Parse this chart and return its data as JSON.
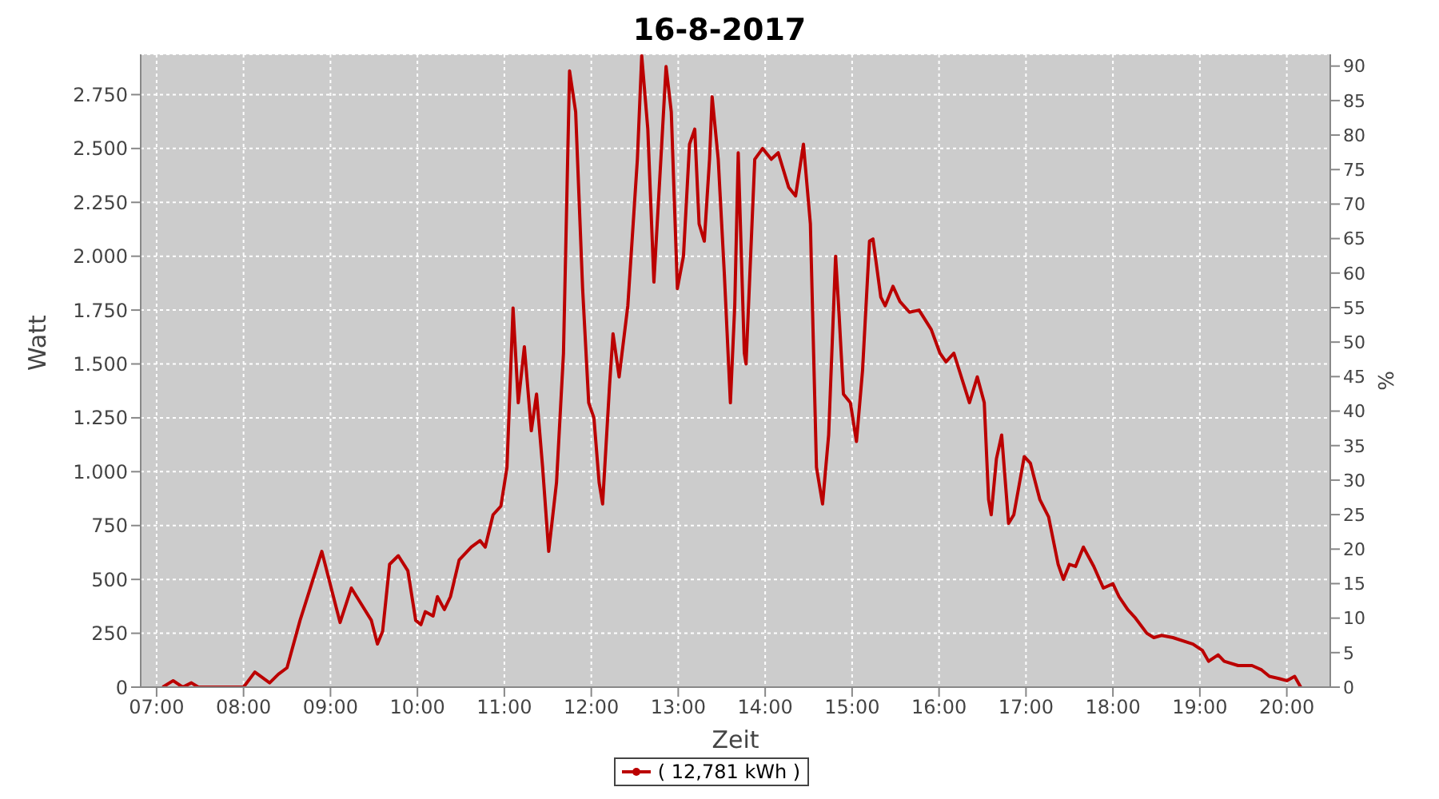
{
  "chart_data": {
    "type": "line",
    "title": "16-8-2017",
    "xlabel": "Zeit",
    "ylabel": "Watt",
    "y2label": "%",
    "xlim": [
      6.817,
      20.5
    ],
    "xticks": [
      {
        "value": 7,
        "label": "07:00"
      },
      {
        "value": 8,
        "label": "08:00"
      },
      {
        "value": 9,
        "label": "09:00"
      },
      {
        "value": 10,
        "label": "10:00"
      },
      {
        "value": 11,
        "label": "11:00"
      },
      {
        "value": 12,
        "label": "12:00"
      },
      {
        "value": 13,
        "label": "13:00"
      },
      {
        "value": 14,
        "label": "14:00"
      },
      {
        "value": 15,
        "label": "15:00"
      },
      {
        "value": 16,
        "label": "16:00"
      },
      {
        "value": 17,
        "label": "17:00"
      },
      {
        "value": 18,
        "label": "18:00"
      },
      {
        "value": 19,
        "label": "19:00"
      },
      {
        "value": 20,
        "label": "20:00"
      }
    ],
    "ylim": [
      0,
      2937
    ],
    "yticks": [
      0,
      250,
      500,
      750,
      {
        "value": 1000,
        "label": "1.000"
      },
      {
        "value": 1250,
        "label": "1.250"
      },
      {
        "value": 1500,
        "label": "1.500"
      },
      {
        "value": 1750,
        "label": "1.750"
      },
      {
        "value": 2000,
        "label": "2.000"
      },
      {
        "value": 2250,
        "label": "2.250"
      },
      {
        "value": 2500,
        "label": "2.500"
      },
      {
        "value": 2750,
        "label": "2.750"
      }
    ],
    "y2lim": [
      0,
      91.7
    ],
    "y2ticks": [
      0,
      5,
      10,
      15,
      20,
      25,
      30,
      35,
      40,
      45,
      50,
      55,
      60,
      65,
      70,
      75,
      80,
      85,
      90
    ],
    "grid": true,
    "legend": "bottom",
    "marker": "none",
    "line_style": "solid",
    "series": [
      {
        "name": "( 12,781 kWh )",
        "color": "#bb0000",
        "x": [
          7.07,
          7.19,
          7.3,
          7.4,
          7.48,
          8.0,
          8.13,
          8.3,
          8.4,
          8.5,
          8.65,
          8.76,
          8.9,
          9.11,
          9.24,
          9.47,
          9.54,
          9.6,
          9.68,
          9.78,
          9.89,
          9.98,
          10.04,
          10.09,
          10.18,
          10.23,
          10.31,
          10.38,
          10.48,
          10.62,
          10.72,
          10.78,
          10.87,
          10.96,
          11.03,
          11.1,
          11.16,
          11.23,
          11.31,
          11.37,
          11.44,
          11.51,
          11.6,
          11.68,
          11.75,
          11.82,
          11.9,
          11.97,
          12.03,
          12.09,
          12.13,
          12.21,
          12.25,
          12.32,
          12.42,
          12.53,
          12.58,
          12.65,
          12.72,
          12.81,
          12.86,
          12.92,
          12.99,
          13.06,
          13.13,
          13.19,
          13.24,
          13.3,
          13.36,
          13.39,
          13.46,
          13.53,
          13.6,
          13.65,
          13.69,
          13.76,
          13.78,
          13.88,
          13.97,
          14.07,
          14.15,
          14.27,
          14.35,
          14.44,
          14.52,
          14.59,
          14.66,
          14.73,
          14.81,
          14.85,
          14.9,
          14.98,
          15.05,
          15.12,
          15.2,
          15.24,
          15.33,
          15.38,
          15.47,
          15.55,
          15.66,
          15.77,
          15.91,
          16.01,
          16.08,
          16.17,
          16.35,
          16.44,
          16.52,
          16.57,
          16.6,
          16.66,
          16.72,
          16.8,
          16.86,
          16.98,
          17.05,
          17.16,
          17.26,
          17.37,
          17.43,
          17.5,
          17.57,
          17.66,
          17.78,
          17.89,
          18.0,
          18.07,
          18.17,
          18.26,
          18.39,
          18.47,
          18.56,
          18.69,
          18.92,
          19.03,
          19.1,
          19.21,
          19.28,
          19.44,
          19.6,
          19.71,
          19.8,
          19.91,
          20.0,
          20.09,
          20.16
        ],
        "values": [
          0,
          30,
          0,
          20,
          0,
          0,
          70,
          20,
          60,
          90,
          310,
          450,
          630,
          300,
          460,
          310,
          200,
          260,
          570,
          610,
          540,
          310,
          290,
          350,
          330,
          420,
          360,
          420,
          590,
          650,
          680,
          650,
          800,
          840,
          1020,
          1760,
          1320,
          1580,
          1190,
          1360,
          1020,
          630,
          950,
          1550,
          2860,
          2670,
          1850,
          1320,
          1250,
          950,
          850,
          1400,
          1640,
          1440,
          1770,
          2450,
          2930,
          2590,
          1880,
          2520,
          2880,
          2670,
          1850,
          2000,
          2520,
          2590,
          2150,
          2070,
          2450,
          2740,
          2450,
          1920,
          1320,
          1770,
          2480,
          1550,
          1500,
          2450,
          2500,
          2450,
          2480,
          2320,
          2280,
          2520,
          2150,
          1020,
          850,
          1170,
          2000,
          1730,
          1360,
          1320,
          1140,
          1470,
          2070,
          2080,
          1810,
          1770,
          1860,
          1790,
          1740,
          1750,
          1660,
          1550,
          1510,
          1550,
          1320,
          1440,
          1320,
          870,
          800,
          1060,
          1170,
          760,
          800,
          1070,
          1040,
          870,
          790,
          570,
          500,
          570,
          560,
          650,
          560,
          460,
          480,
          420,
          360,
          320,
          250,
          230,
          240,
          230,
          200,
          170,
          120,
          150,
          120,
          100,
          100,
          80,
          50,
          40,
          30,
          50,
          0
        ]
      }
    ]
  }
}
